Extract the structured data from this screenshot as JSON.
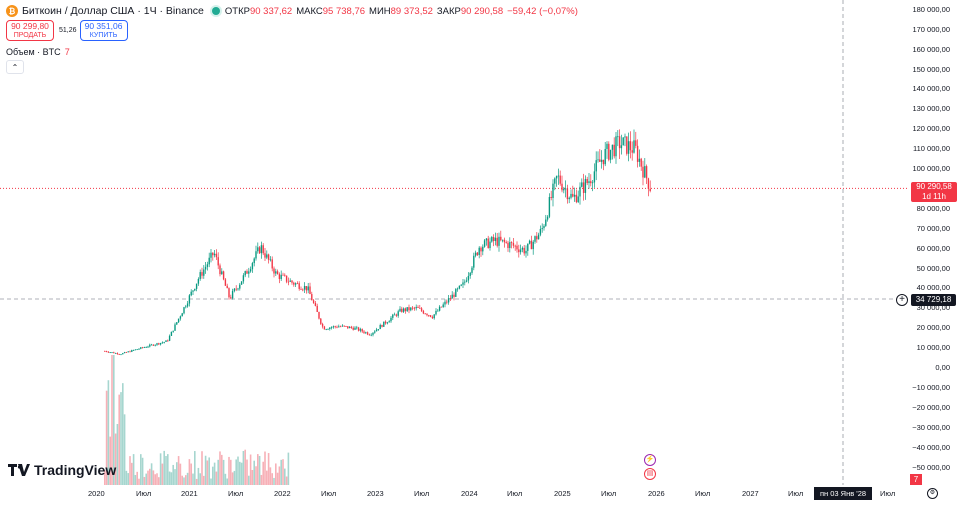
{
  "symbol": {
    "title": "Биткоин / Доллар США · 1Ч · Binance",
    "logo": "bitcoin-logo",
    "status_color": "#22ab94"
  },
  "ohlc": {
    "open_label": "ОТКР",
    "open": "90 337,62",
    "high_label": "МАКС",
    "high": "95 738,76",
    "low_label": "МИН",
    "low": "89 373,52",
    "close_label": "ЗАКР",
    "close": "90 290,58",
    "change": "−59,42 (−0,07%)"
  },
  "trade": {
    "sell_price": "90 299,80",
    "sell_label": "ПРОДАТЬ",
    "spread": "51,26",
    "buy_price": "90 351,06",
    "buy_label": "КУПИТЬ"
  },
  "volume": {
    "label": "Объем · BTC",
    "value": "7"
  },
  "collapse_icon": "chevron-up-icon",
  "brand": {
    "name": "TradingView"
  },
  "price_axis": {
    "ticks": [
      "180 000,00",
      "170 000,00",
      "160 000,00",
      "150 000,00",
      "140 000,00",
      "130 000,00",
      "120 000,00",
      "110 000,00",
      "100 000,00",
      "90 000,00",
      "80 000,00",
      "70 000,00",
      "60 000,00",
      "50 000,00",
      "40 000,00",
      "30 000,00",
      "20 000,00",
      "10 000,00",
      "0,00",
      "−10 000,00",
      "−20 000,00",
      "−30 000,00",
      "−40 000,00",
      "−50 000,00"
    ],
    "last_price": "90 290,58",
    "countdown": "1d 11h",
    "crosshair_price": "34 729,18",
    "volume_tag": "7"
  },
  "time_axis": {
    "ticks": [
      "2020",
      "Июл",
      "2021",
      "Июл",
      "2022",
      "Июл",
      "2023",
      "Июл",
      "2024",
      "Июл",
      "2025",
      "Июл",
      "2026",
      "Июл",
      "2027",
      "Июл",
      "Июл"
    ],
    "crosshair_date": "пн 03 Янв '28"
  },
  "colors": {
    "up": "#089981",
    "down": "#f23645",
    "vol_up": "#a6d6cf",
    "vol_down": "#f7b0b7",
    "grid": "#f0f3fa"
  },
  "chart_data": {
    "type": "candlestick",
    "ylim": [
      -55000,
      185000
    ],
    "x": [
      "2020-02",
      "2020-04",
      "2020-06",
      "2020-08",
      "2020-10",
      "2020-12",
      "2021-02",
      "2021-04",
      "2021-06",
      "2021-08",
      "2021-10",
      "2021-12",
      "2022-02",
      "2022-04",
      "2022-06",
      "2022-08",
      "2022-10",
      "2022-12",
      "2023-02",
      "2023-04",
      "2023-06",
      "2023-08",
      "2023-10",
      "2023-12",
      "2024-02",
      "2024-04",
      "2024-06",
      "2024-08",
      "2024-10",
      "2024-12",
      "2025-02",
      "2025-04",
      "2025-06",
      "2025-08",
      "2025-10",
      "2025-12"
    ],
    "close": [
      8500,
      7000,
      9300,
      11500,
      13500,
      29000,
      45000,
      58000,
      35000,
      47000,
      61000,
      47000,
      43000,
      40000,
      20000,
      21000,
      20000,
      17000,
      23000,
      29000,
      30000,
      26000,
      34000,
      42000,
      61000,
      64000,
      62000,
      59000,
      69000,
      96000,
      85000,
      94000,
      107000,
      113000,
      110000,
      90290
    ],
    "volume_notes": "volume bars in 2020 peak near March 2020"
  }
}
